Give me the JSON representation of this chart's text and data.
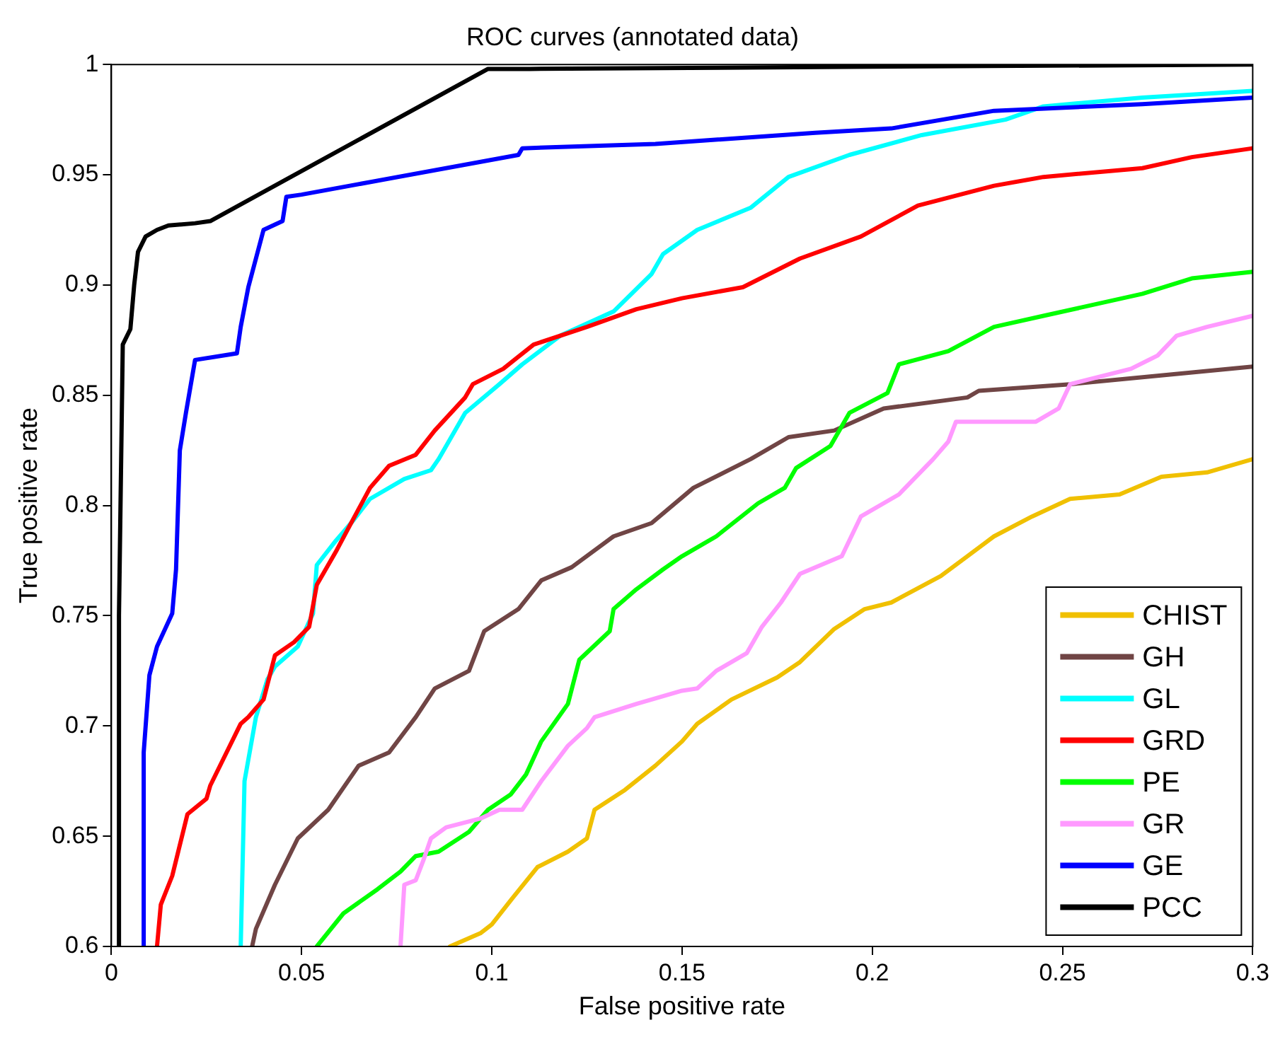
{
  "chart_data": {
    "type": "line",
    "title": "ROC curves (annotated data)",
    "xlabel": "False positive rate",
    "ylabel": "True positive rate",
    "xlim": [
      0,
      0.3
    ],
    "xticks": [
      0,
      0.05,
      0.1,
      0.15,
      0.2,
      0.25,
      0.3
    ],
    "ylim": [
      0.6,
      1
    ],
    "yticks": [
      0.6,
      0.65,
      0.7,
      0.75,
      0.8,
      0.85,
      0.9,
      0.95,
      1
    ],
    "grid": false,
    "legend": "bottom right",
    "marker": "none",
    "line_style": "solid",
    "series": [
      {
        "name": "CHIST",
        "color": "#f0c000",
        "x": [
          0.089,
          0.097,
          0.1,
          0.105,
          0.112,
          0.12,
          0.125,
          0.127,
          0.135,
          0.143,
          0.15,
          0.154,
          0.163,
          0.175,
          0.181,
          0.19,
          0.198,
          0.205,
          0.218,
          0.225,
          0.232,
          0.242,
          0.252,
          0.265,
          0.276,
          0.288,
          0.3
        ],
        "values": [
          0.6,
          0.606,
          0.61,
          0.621,
          0.636,
          0.643,
          0.649,
          0.662,
          0.671,
          0.682,
          0.693,
          0.701,
          0.712,
          0.722,
          0.729,
          0.744,
          0.753,
          0.756,
          0.768,
          0.777,
          0.786,
          0.795,
          0.803,
          0.805,
          0.813,
          0.815,
          0.821
        ]
      },
      {
        "name": "GH",
        "color": "#704545",
        "x": [
          0.037,
          0.038,
          0.043,
          0.049,
          0.057,
          0.065,
          0.073,
          0.08,
          0.085,
          0.094,
          0.098,
          0.107,
          0.113,
          0.121,
          0.132,
          0.142,
          0.153,
          0.168,
          0.178,
          0.19,
          0.203,
          0.225,
          0.228,
          0.252,
          0.3
        ],
        "values": [
          0.6,
          0.608,
          0.628,
          0.649,
          0.662,
          0.682,
          0.688,
          0.704,
          0.717,
          0.725,
          0.743,
          0.753,
          0.766,
          0.772,
          0.786,
          0.792,
          0.808,
          0.821,
          0.831,
          0.834,
          0.844,
          0.849,
          0.852,
          0.855,
          0.863
        ]
      },
      {
        "name": "GL",
        "color": "#00ffff",
        "x": [
          0.034,
          0.035,
          0.038,
          0.041,
          0.043,
          0.049,
          0.053,
          0.054,
          0.059,
          0.063,
          0.068,
          0.077,
          0.084,
          0.086,
          0.093,
          0.102,
          0.108,
          0.118,
          0.132,
          0.142,
          0.145,
          0.154,
          0.168,
          0.178,
          0.194,
          0.213,
          0.235,
          0.245,
          0.271,
          0.3
        ],
        "values": [
          0.6,
          0.675,
          0.704,
          0.721,
          0.727,
          0.736,
          0.751,
          0.773,
          0.784,
          0.792,
          0.803,
          0.812,
          0.816,
          0.821,
          0.842,
          0.855,
          0.864,
          0.877,
          0.888,
          0.905,
          0.914,
          0.925,
          0.935,
          0.949,
          0.959,
          0.968,
          0.975,
          0.981,
          0.985,
          0.988
        ]
      },
      {
        "name": "GRD",
        "color": "#ff0000",
        "x": [
          0.012,
          0.013,
          0.016,
          0.02,
          0.025,
          0.026,
          0.034,
          0.036,
          0.04,
          0.043,
          0.048,
          0.052,
          0.054,
          0.059,
          0.063,
          0.068,
          0.073,
          0.08,
          0.085,
          0.093,
          0.095,
          0.103,
          0.111,
          0.125,
          0.138,
          0.15,
          0.166,
          0.181,
          0.197,
          0.212,
          0.232,
          0.245,
          0.271,
          0.284,
          0.3
        ],
        "values": [
          0.6,
          0.619,
          0.632,
          0.66,
          0.667,
          0.673,
          0.701,
          0.704,
          0.712,
          0.732,
          0.738,
          0.745,
          0.764,
          0.779,
          0.792,
          0.808,
          0.818,
          0.823,
          0.834,
          0.849,
          0.855,
          0.862,
          0.873,
          0.881,
          0.889,
          0.894,
          0.899,
          0.912,
          0.922,
          0.936,
          0.945,
          0.949,
          0.953,
          0.958,
          0.962
        ]
      },
      {
        "name": "PE",
        "color": "#00ff00",
        "x": [
          0.054,
          0.061,
          0.07,
          0.076,
          0.08,
          0.086,
          0.094,
          0.099,
          0.105,
          0.109,
          0.113,
          0.12,
          0.123,
          0.131,
          0.132,
          0.138,
          0.145,
          0.15,
          0.159,
          0.17,
          0.177,
          0.18,
          0.189,
          0.194,
          0.204,
          0.207,
          0.22,
          0.232,
          0.245,
          0.271,
          0.284,
          0.3
        ],
        "values": [
          0.6,
          0.615,
          0.626,
          0.634,
          0.641,
          0.643,
          0.652,
          0.662,
          0.669,
          0.678,
          0.693,
          0.71,
          0.73,
          0.743,
          0.753,
          0.762,
          0.771,
          0.777,
          0.786,
          0.801,
          0.808,
          0.817,
          0.827,
          0.842,
          0.851,
          0.864,
          0.87,
          0.881,
          0.886,
          0.896,
          0.903,
          0.906
        ]
      },
      {
        "name": "GR",
        "color": "#ff99ff",
        "x": [
          0.076,
          0.077,
          0.08,
          0.082,
          0.084,
          0.088,
          0.097,
          0.102,
          0.108,
          0.113,
          0.12,
          0.125,
          0.127,
          0.138,
          0.15,
          0.154,
          0.159,
          0.167,
          0.171,
          0.176,
          0.181,
          0.192,
          0.197,
          0.207,
          0.216,
          0.22,
          0.222,
          0.243,
          0.249,
          0.252,
          0.268,
          0.275,
          0.28,
          0.288,
          0.3
        ],
        "values": [
          0.6,
          0.628,
          0.63,
          0.639,
          0.649,
          0.654,
          0.658,
          0.662,
          0.662,
          0.675,
          0.691,
          0.699,
          0.704,
          0.71,
          0.716,
          0.717,
          0.725,
          0.733,
          0.745,
          0.756,
          0.769,
          0.777,
          0.795,
          0.805,
          0.821,
          0.829,
          0.838,
          0.838,
          0.844,
          0.855,
          0.862,
          0.868,
          0.877,
          0.881,
          0.886
        ]
      },
      {
        "name": "GE",
        "color": "#0000ff",
        "x": [
          0.0085,
          0.0085,
          0.01,
          0.012,
          0.016,
          0.017,
          0.018,
          0.0196,
          0.022,
          0.033,
          0.034,
          0.036,
          0.04,
          0.045,
          0.046,
          0.05,
          0.107,
          0.108,
          0.143,
          0.185,
          0.205,
          0.232,
          0.271,
          0.3
        ],
        "values": [
          0.6,
          0.688,
          0.723,
          0.736,
          0.751,
          0.771,
          0.825,
          0.842,
          0.866,
          0.869,
          0.881,
          0.899,
          0.925,
          0.929,
          0.94,
          0.941,
          0.959,
          0.962,
          0.964,
          0.969,
          0.971,
          0.979,
          0.982,
          0.985
        ]
      },
      {
        "name": "PCC",
        "color": "#000000",
        "x": [
          0.002,
          0.002,
          0.003,
          0.005,
          0.006,
          0.007,
          0.009,
          0.012,
          0.015,
          0.022,
          0.026,
          0.099,
          0.11,
          0.2,
          0.3
        ],
        "values": [
          0.6,
          0.75,
          0.873,
          0.88,
          0.9,
          0.915,
          0.922,
          0.925,
          0.927,
          0.928,
          0.929,
          0.998,
          0.998,
          0.999,
          1.0
        ]
      }
    ]
  }
}
